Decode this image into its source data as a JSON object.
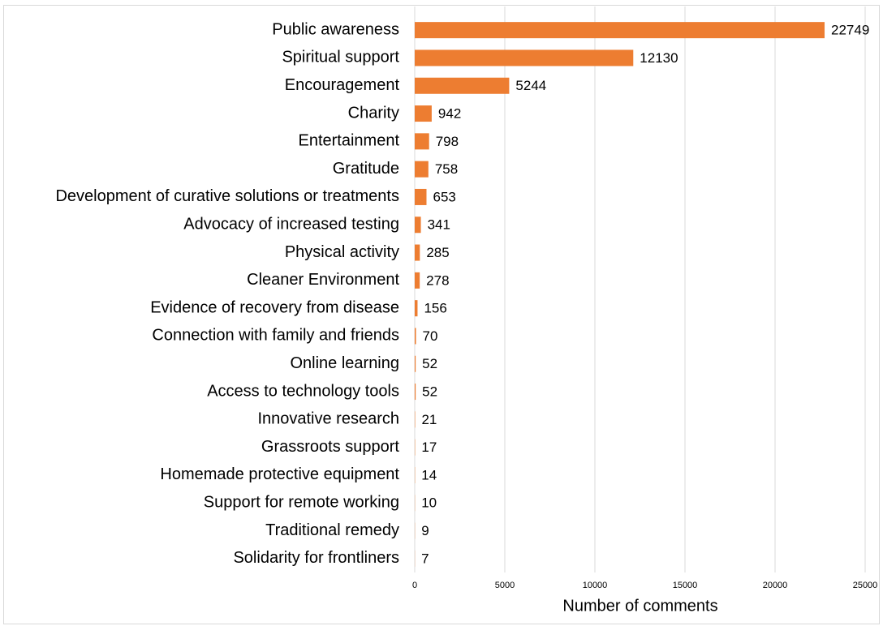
{
  "chart_data": {
    "type": "barh",
    "xlabel": "Number of comments",
    "categories": [
      "Public awareness",
      "Spiritual support",
      "Encouragement",
      "Charity",
      "Entertainment",
      "Gratitude",
      "Development of curative solutions or treatments",
      "Advocacy of increased testing",
      "Physical activity",
      "Cleaner Environment",
      "Evidence of recovery from disease",
      "Connection with family and friends",
      "Online learning",
      "Access to technology tools",
      "Innovative research",
      "Grassroots support",
      "Homemade protective equipment",
      "Support for remote working",
      "Traditional remedy",
      "Solidarity for frontliners"
    ],
    "values": [
      22749,
      12130,
      5244,
      942,
      798,
      758,
      653,
      341,
      285,
      278,
      156,
      70,
      52,
      52,
      21,
      17,
      14,
      10,
      9,
      7
    ],
    "color": "#ed7d31",
    "xlim": [
      0,
      25000
    ],
    "xticks": [
      0,
      5000,
      10000,
      15000,
      20000,
      25000
    ],
    "grid": true
  }
}
